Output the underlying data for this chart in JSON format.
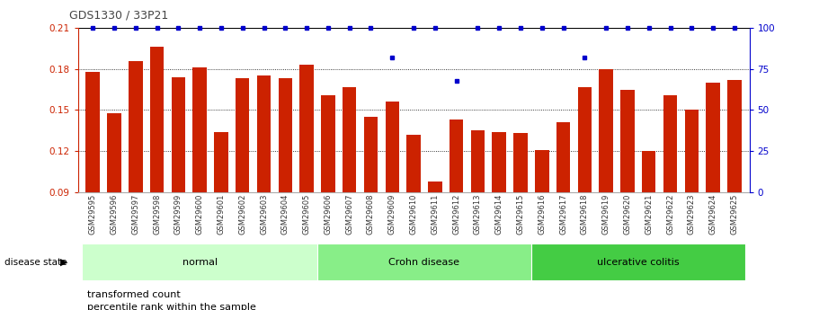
{
  "title": "GDS1330 / 33P21",
  "samples": [
    "GSM29595",
    "GSM29596",
    "GSM29597",
    "GSM29598",
    "GSM29599",
    "GSM29600",
    "GSM29601",
    "GSM29602",
    "GSM29603",
    "GSM29604",
    "GSM29605",
    "GSM29606",
    "GSM29607",
    "GSM29608",
    "GSM29609",
    "GSM29610",
    "GSM29611",
    "GSM29612",
    "GSM29613",
    "GSM29614",
    "GSM29615",
    "GSM29616",
    "GSM29617",
    "GSM29618",
    "GSM29619",
    "GSM29620",
    "GSM29621",
    "GSM29622",
    "GSM29623",
    "GSM29624",
    "GSM29625"
  ],
  "bar_values": [
    0.178,
    0.148,
    0.186,
    0.196,
    0.174,
    0.181,
    0.134,
    0.173,
    0.175,
    0.173,
    0.183,
    0.161,
    0.167,
    0.145,
    0.156,
    0.132,
    0.098,
    0.143,
    0.135,
    0.134,
    0.133,
    0.121,
    0.141,
    0.167,
    0.18,
    0.165,
    0.12,
    0.161,
    0.15,
    0.17,
    0.172
  ],
  "percentile_values": [
    100,
    100,
    100,
    100,
    100,
    100,
    100,
    100,
    100,
    100,
    100,
    100,
    100,
    100,
    82,
    100,
    100,
    68,
    100,
    100,
    100,
    100,
    100,
    82,
    100,
    100,
    100,
    100,
    100,
    100,
    100
  ],
  "bar_color": "#cc2200",
  "percentile_color": "#0000cc",
  "ylim_left": [
    0.09,
    0.21
  ],
  "ylim_right": [
    0,
    100
  ],
  "yticks_left": [
    0.09,
    0.12,
    0.15,
    0.18,
    0.21
  ],
  "yticks_right": [
    0,
    25,
    50,
    75,
    100
  ],
  "group_configs": [
    {
      "label": "normal",
      "start": 0,
      "end": 10,
      "color": "#ccffcc"
    },
    {
      "label": "Crohn disease",
      "start": 11,
      "end": 20,
      "color": "#88ee88"
    },
    {
      "label": "ulcerative colitis",
      "start": 21,
      "end": 30,
      "color": "#44cc44"
    }
  ],
  "disease_state_label": "disease state",
  "legend_bar_label": "transformed count",
  "legend_pct_label": "percentile rank within the sample",
  "bg_color": "#ffffff"
}
